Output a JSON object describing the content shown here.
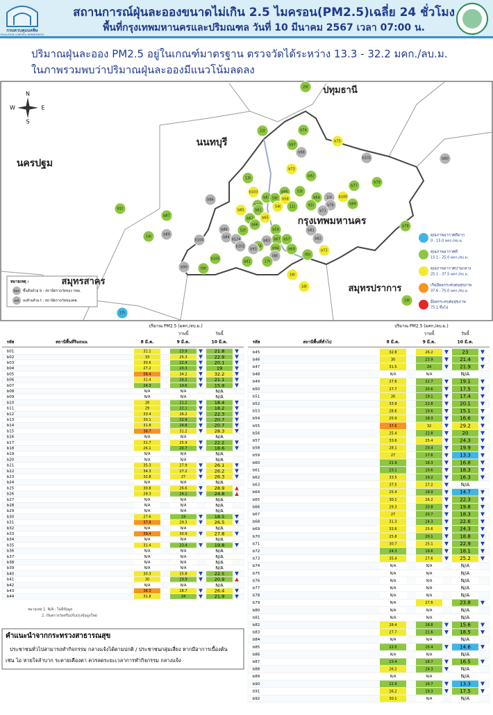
{
  "header": {
    "title": "สถานการณ์ฝุ่นละอองขนาดไม่เกิน 2.5 ไมครอน(PM2.5)เฉลี่ย 24 ชั่วโมง",
    "subtitle": "พื้นที่กรุงเทพมหานครและปริมณฑล วันที่ 10 มีนาคม 2567 เวลา 07:00 น.",
    "logo_th": "กรมควบคุมมลพิษ",
    "logo_en": "POLLUTION CONTROL DEPARTMENT"
  },
  "summary": {
    "line1": "ปริมาณฝุ่นละออง PM2.5 อยู่ในเกณฑ์มาตรฐาน ตรวจวัดได้ระหว่าง 13.3 - 32.2 มคก./ลบ.ม.",
    "line2": "ในภาพรวมพบว่าปริมาณฝุ่นละอองมีแนวโน้มลดลง"
  },
  "map": {
    "regions": [
      "ปทุมธานี",
      "นนทบุรี",
      "นครปฐม",
      "กรุงเทพมหานคร",
      "สมุทรสาคร",
      "สมุทรปราการ"
    ],
    "compass": [
      "N",
      "S",
      "E",
      "W"
    ],
    "note_title": "หมายเหตุ :",
    "notes": [
      {
        "sample": "bxx",
        "text": "ขึ้นต้นด้วย b : สถานีตรวจวัดของ กทม."
      },
      {
        "sample": "xxt",
        "text": "ลงท้ายด้วย t : สถานีตรวจวัดของคพ."
      }
    ],
    "stations": [
      {
        "code": "20t",
        "color": "#8dc63f"
      },
      {
        "code": "b74",
        "color": "#8dc63f"
      },
      {
        "code": "b75",
        "color": "#f2ea2e"
      },
      {
        "code": "b97",
        "color": "#8dc63f"
      },
      {
        "code": "b98",
        "color": "#b3b3b3"
      },
      {
        "code": "b101",
        "color": "#b3b3b3"
      },
      {
        "code": "b80",
        "color": "#b3b3b3"
      },
      {
        "code": "22t",
        "color": "#8dc63f"
      },
      {
        "code": "b73",
        "color": "#f2ea2e"
      },
      {
        "code": "b92",
        "color": "#8dc63f"
      },
      {
        "code": "b79",
        "color": "#8dc63f"
      },
      {
        "code": "b77",
        "color": "#8dc63f"
      },
      {
        "code": "13t",
        "color": "#8dc63f"
      },
      {
        "code": "b95",
        "color": "#8dc63f"
      },
      {
        "code": "53t",
        "color": "#8dc63f"
      },
      {
        "code": "b103",
        "color": "#f2ea2e"
      },
      {
        "code": "b86",
        "color": "#b3b3b3"
      },
      {
        "code": "b63",
        "color": "#8dc63f"
      },
      {
        "code": "59t",
        "color": "#8dc63f"
      },
      {
        "code": "b58",
        "color": "#f2ea2e"
      },
      {
        "code": "b64",
        "color": "#8dc63f"
      },
      {
        "code": "10t",
        "color": "#b3b3b3"
      },
      {
        "code": "b100",
        "color": "#f2ea2e"
      },
      {
        "code": "b99",
        "color": "#8dc63f"
      },
      {
        "code": "81t",
        "color": "#8dc63f"
      },
      {
        "code": "b60",
        "color": "#8dc63f"
      },
      {
        "code": "54t",
        "color": "#f2ea2e"
      },
      {
        "code": "61t",
        "color": "#8dc63f"
      },
      {
        "code": "b76",
        "color": "#b3b3b3"
      },
      {
        "code": "11t",
        "color": "#8dc63f"
      },
      {
        "code": "b71",
        "color": "#b3b3b3"
      },
      {
        "code": "b87",
        "color": "#8dc63f"
      },
      {
        "code": "b85",
        "color": "#f2ea2e"
      },
      {
        "code": "b61",
        "color": "#8dc63f"
      },
      {
        "code": "b62",
        "color": "#8dc63f"
      },
      {
        "code": "b65",
        "color": "#f2ea2e"
      },
      {
        "code": "b88",
        "color": "#b3b3b3"
      },
      {
        "code": "b66",
        "color": "#8dc63f"
      },
      {
        "code": "52t",
        "color": "#8dc63f"
      },
      {
        "code": "b78",
        "color": "#8dc63f"
      },
      {
        "code": "b81",
        "color": "#b3b3b3"
      },
      {
        "code": "b89",
        "color": "#b3b3b3"
      },
      {
        "code": "14t",
        "color": "#8dc63f"
      },
      {
        "code": "b84",
        "color": "#b3b3b3"
      },
      {
        "code": "b104",
        "color": "#b3b3b3"
      },
      {
        "code": "b124",
        "color": "#b3b3b3"
      },
      {
        "code": "b59",
        "color": "#8dc63f"
      },
      {
        "code": "b67",
        "color": "#8dc63f"
      },
      {
        "code": "b57",
        "color": "#8dc63f"
      },
      {
        "code": "b82",
        "color": "#b3b3b3"
      },
      {
        "code": "b102",
        "color": "#b3b3b3"
      },
      {
        "code": "b83",
        "color": "#b3b3b3"
      },
      {
        "code": "b68",
        "color": "#8dc63f"
      },
      {
        "code": "b72",
        "color": "#f2ea2e"
      },
      {
        "code": "b94",
        "color": "#8dc63f"
      },
      {
        "code": "b93",
        "color": "#b3b3b3"
      },
      {
        "code": "b69",
        "color": "#8dc63f"
      },
      {
        "code": "b105",
        "color": "#8dc63f"
      },
      {
        "code": "08t",
        "color": "#b3b3b3"
      },
      {
        "code": "05t",
        "color": "#8dc63f"
      },
      {
        "code": "b91",
        "color": "#8dc63f"
      },
      {
        "code": "17t",
        "color": "#8dc63f"
      },
      {
        "code": "b90",
        "color": "#b3b3b3"
      },
      {
        "code": "09t",
        "color": "#8dc63f"
      },
      {
        "code": "16t",
        "color": "#f2ea2e"
      },
      {
        "code": "18t",
        "color": "#f2ea2e"
      },
      {
        "code": "19t",
        "color": "#8dc63f"
      },
      {
        "code": "27t",
        "color": "#3fb5e5"
      }
    ]
  },
  "legend": [
    {
      "label": "คุณภาพอากาศดีมาก",
      "range": "0 - 15.0 มคก./ลบ.ม.",
      "max": 15.0,
      "color": "#3fb5e5"
    },
    {
      "label": "คุณภาพอากาศดี",
      "range": "15.1 - 25.0 มคก./ลบ.ม.",
      "max": 25.0,
      "color": "#8dc63f"
    },
    {
      "label": "คุณภาพอากาศปานกลาง",
      "range": "25.1 - 37.5 มคก./ลบ.ม.",
      "max": 37.5,
      "color": "#f2ea2e"
    },
    {
      "label": "เริ่มมีผลกระทบต่อสุขภาพ",
      "range": "37.6 - 75.0 มคก./ลบ.ม.",
      "max": 75.0,
      "color": "#f7941d"
    },
    {
      "label": "มีผลกระทบต่อสุขภาพ",
      "range": "75.1 ขึ้นไป",
      "max": 100000,
      "color": "#e32626"
    }
  ],
  "tables": {
    "quantity": "ปริมาณ PM2.5 (มคก./ลบ.ม.)",
    "yesterday": "วานนี้",
    "today": "วันนี้",
    "code_header": "รหัส",
    "dates": [
      "8 มี.ค.",
      "9 มี.ค.",
      "10 มี.ค."
    ],
    "na_label": "N/A",
    "left": {
      "title": "สถานีพื้นที่ริมถนน",
      "rows": [
        [
          "b01",
          31.1,
          23.9,
          21.8
        ],
        [
          "b02",
          33.0,
          25.3,
          22.9
        ],
        [
          "b03",
          30.6,
          22.4,
          20.1
        ],
        [
          "b04",
          27.2,
          20.3,
          19.0
        ],
        [
          "b05",
          58.4,
          34.2,
          32.2
        ],
        [
          "b06",
          31.4,
          24.2,
          21.1
        ],
        [
          "b07",
          24.3,
          19.6,
          15.9
        ],
        [
          "b08",
          null,
          null,
          null
        ],
        [
          "b09",
          null,
          null,
          null
        ],
        [
          "b10",
          28.0,
          21.2,
          18.4
        ],
        [
          "b11",
          29.0,
          22.1,
          18.2
        ],
        [
          "b12",
          33.4,
          26.2,
          22.3
        ],
        [
          "b13",
          30.1,
          22.9,
          20.7
        ],
        [
          "b14",
          31.8,
          24.8,
          20.7
        ],
        [
          "b15",
          38.7,
          31.2,
          28.3
        ],
        [
          "b16",
          null,
          null,
          null
        ],
        [
          "b17",
          31.7,
          25.9,
          22.2
        ],
        [
          "b18",
          26.1,
          20.7,
          18.6
        ],
        [
          "b19",
          null,
          null,
          null
        ],
        [
          "b20",
          null,
          null,
          null
        ],
        [
          "b21",
          35.3,
          27.9,
          26.1
        ],
        [
          "b22",
          34.3,
          27.2,
          26.2
        ],
        [
          "b23",
          32.8,
          27.0,
          26.3
        ],
        [
          "b24",
          null,
          null,
          null
        ],
        [
          "b25",
          30.8,
          26.6,
          28.9
        ],
        [
          "b26",
          28.3,
          24.1,
          24.8
        ],
        [
          "b27",
          null,
          null,
          null
        ],
        [
          "b28",
          null,
          null,
          null
        ],
        [
          "b29",
          null,
          null,
          null
        ],
        [
          "b30",
          27.6,
          19.0,
          18.5
        ],
        [
          "b31",
          37.8,
          29.3,
          26.5
        ],
        [
          "b32",
          null,
          null,
          null
        ],
        [
          "b33",
          39.4,
          30.9,
          27.8
        ],
        [
          "b34",
          null,
          null,
          null
        ],
        [
          "b35",
          31.4,
          23.4,
          19.8
        ],
        [
          "b36",
          null,
          null,
          null
        ],
        [
          "b37",
          null,
          null,
          null
        ],
        [
          "b38",
          null,
          null,
          null
        ],
        [
          "b39",
          null,
          null,
          null
        ],
        [
          "b40",
          30.3,
          25.8,
          22.5
        ],
        [
          "b41",
          30.0,
          19.9,
          20.9
        ],
        [
          "b42",
          null,
          null,
          null
        ],
        [
          "b43",
          38.3,
          28.7,
          26.4
        ],
        [
          "b44",
          31.8,
          24.0,
          21.9
        ]
      ]
    },
    "right": {
      "title": "สถานีพื้นที่ทั่วไป",
      "rows": [
        [
          "b45",
          32.8,
          26.2,
          23.0
        ],
        [
          "b46",
          30.0,
          23.9,
          21.4
        ],
        [
          "b47",
          31.5,
          24.0,
          21.9
        ],
        [
          "b48",
          null,
          null,
          null
        ],
        [
          "b49",
          27.6,
          22.7,
          19.1
        ],
        [
          "b50",
          27.7,
          20.6,
          17.5
        ],
        [
          "b51",
          26.0,
          19.1,
          17.4
        ],
        [
          "b52",
          33.9,
          22.8,
          20.1
        ],
        [
          "b53",
          28.6,
          19.6,
          15.1
        ],
        [
          "b54",
          25.9,
          18.3,
          16.6
        ],
        [
          "b55",
          37.6,
          32.0,
          29.2
        ],
        [
          "b56",
          25.4,
          22.8,
          20.0
        ],
        [
          "b57",
          33.6,
          25.4,
          24.3
        ],
        [
          "b58",
          28.1,
          20.4,
          19.9
        ],
        [
          "b59",
          27.0,
          17.6,
          13.3
        ],
        [
          "b60",
          21.9,
          18.3,
          16.8
        ],
        [
          "b61",
          23.1,
          19.6,
          18.3
        ],
        [
          "b62",
          33.5,
          19.2,
          16.3
        ],
        [
          "b63",
          37.5,
          27.2,
          null
        ],
        [
          "b64",
          25.4,
          18.9,
          14.7
        ],
        [
          "b65",
          30.1,
          26.2,
          22.3
        ],
        [
          "b66",
          29.3,
          20.8,
          19.8
        ],
        [
          "b67",
          27.0,
          20.7,
          18.3
        ],
        [
          "b68",
          31.3,
          24.3,
          22.6
        ],
        [
          "b69",
          33.6,
          25.6,
          24.3
        ],
        [
          "b70",
          25.8,
          20.1,
          18.8
        ],
        [
          "b71",
          30.7,
          25.1,
          22.9
        ],
        [
          "b72",
          24.3,
          19.6,
          18.1
        ],
        [
          "b73",
          35.4,
          27.6,
          25.2
        ],
        [
          "b74",
          null,
          null,
          null
        ],
        [
          "b75",
          null,
          null,
          null
        ],
        [
          "b76",
          null,
          null,
          null
        ],
        [
          "b77",
          null,
          null,
          null
        ],
        [
          "b78",
          null,
          null,
          null
        ],
        [
          "b79",
          null,
          27.6,
          23.8
        ],
        [
          "b80",
          null,
          null,
          null
        ],
        [
          "b81",
          null,
          null,
          null
        ],
        [
          "b82",
          28.4,
          18.8,
          15.6
        ],
        [
          "b83",
          27.7,
          21.6,
          18.5
        ],
        [
          "b84",
          null,
          null,
          null
        ],
        [
          "b85",
          22.5,
          15.4,
          14.6
        ],
        [
          "b86",
          null,
          null,
          null
        ],
        [
          "b87",
          23.4,
          18.7,
          16.5
        ],
        [
          "b88",
          26.2,
          24.3,
          null
        ],
        [
          "b89",
          null,
          null,
          null
        ],
        [
          "b90",
          22.9,
          16.7,
          13.3
        ],
        [
          "b91",
          26.2,
          19.3,
          17.5
        ],
        [
          "b92",
          30.1,
          null,
          null
        ]
      ]
    }
  },
  "footnotes": [
    "หมายเหตุ 1. N/A : ไม่มีข้อมูล",
    "2. เริ่มตรวจวัดหรือปรับปรุงข้อมูลใหม่"
  ],
  "advice": {
    "title": "คำแนะนำจากกระทรวงสาธารณสุข",
    "line1": "ประชาชนทั่วไปสามารถทำกิจกรรม กลางแจ้งได้ตามปกติ / ประชาชนกลุ่มเสี่ยง หากมีอาการเบื้องต้น",
    "line2": "เช่น ไอ หายใจลำบาก ระคายเคืองตา ควรลดระยะเวลาการทำกิจกรรม กลางแจ้ง"
  }
}
